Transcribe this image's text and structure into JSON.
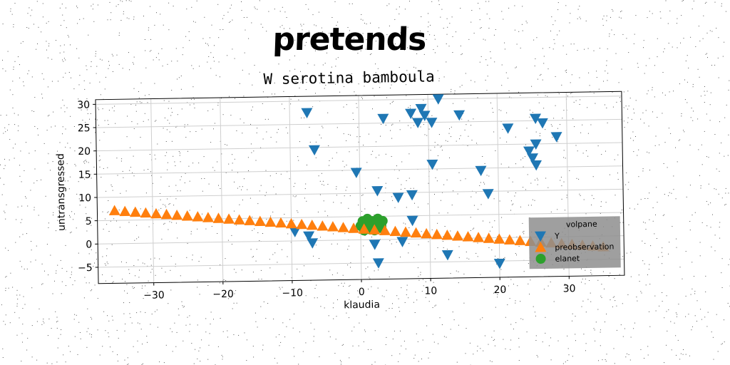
{
  "header": {
    "title": "pretends"
  },
  "chart_data": {
    "type": "scatter",
    "title": "W serotina bamboula",
    "xlabel": "klaudia",
    "ylabel": "untransgressed",
    "xlim": [
      -38,
      38
    ],
    "ylim": [
      -8.5,
      31
    ],
    "xticks": [
      -30,
      -20,
      -10,
      0,
      10,
      20,
      30
    ],
    "yticks": [
      -5,
      0,
      5,
      10,
      15,
      20,
      25,
      30
    ],
    "grid": true,
    "legend": {
      "title": "volpane",
      "placement": "lower-right"
    },
    "series": [
      {
        "name": "Y",
        "marker": "triangle-down",
        "color": "#1f77b4",
        "points": [
          [
            -7.5,
            27.5
          ],
          [
            -6.5,
            19.5
          ],
          [
            -0.5,
            14.5
          ],
          [
            3.5,
            26
          ],
          [
            7.5,
            27
          ],
          [
            8.5,
            25
          ],
          [
            9,
            28
          ],
          [
            9.5,
            26.5
          ],
          [
            10.5,
            25
          ],
          [
            11.5,
            30
          ],
          [
            14.5,
            26.5
          ],
          [
            10.5,
            16
          ],
          [
            2.5,
            10.5
          ],
          [
            5.5,
            9
          ],
          [
            7.5,
            9.5
          ],
          [
            7.5,
            4
          ],
          [
            17.5,
            14.5
          ],
          [
            18.5,
            9.5
          ],
          [
            21.5,
            23.5
          ],
          [
            24.5,
            18.5
          ],
          [
            25.5,
            20
          ],
          [
            25,
            17
          ],
          [
            25.5,
            15.5
          ],
          [
            25.5,
            25.5
          ],
          [
            26.5,
            24.5
          ],
          [
            28.5,
            21.5
          ],
          [
            -9.5,
            2
          ],
          [
            -7.5,
            1
          ],
          [
            -7,
            -0.5
          ],
          [
            2,
            -1
          ],
          [
            6,
            -0.5
          ],
          [
            12.5,
            -3.5
          ],
          [
            2.5,
            -5
          ],
          [
            20,
            -5.5
          ]
        ]
      },
      {
        "name": "preobservation",
        "marker": "triangle-up",
        "color": "#ff7f0e",
        "points": [
          [
            -35.5,
            7.1
          ],
          [
            -34,
            6.9
          ],
          [
            -32.5,
            6.7
          ],
          [
            -31,
            6.5
          ],
          [
            -29.5,
            6.3
          ],
          [
            -28,
            6.1
          ],
          [
            -26.5,
            5.9
          ],
          [
            -25,
            5.7
          ],
          [
            -23.5,
            5.5
          ],
          [
            -22,
            5.3
          ],
          [
            -20.5,
            5.1
          ],
          [
            -19,
            4.9
          ],
          [
            -17.5,
            4.7
          ],
          [
            -16,
            4.5
          ],
          [
            -14.5,
            4.3
          ],
          [
            -13,
            4.1
          ],
          [
            -11.5,
            3.9
          ],
          [
            -10,
            3.7
          ],
          [
            -8.5,
            3.5
          ],
          [
            -7,
            3.3
          ],
          [
            -5.5,
            3.1
          ],
          [
            -4,
            2.9
          ],
          [
            -2.5,
            2.7
          ],
          [
            -1,
            2.5
          ],
          [
            0.5,
            2.3
          ],
          [
            2,
            2.1
          ],
          [
            3.5,
            1.9
          ],
          [
            5,
            1.7
          ],
          [
            6.5,
            1.5
          ],
          [
            8,
            1.3
          ],
          [
            9.5,
            1.1
          ],
          [
            11,
            0.9
          ],
          [
            12.5,
            0.7
          ],
          [
            14,
            0.5
          ],
          [
            15.5,
            0.3
          ],
          [
            17,
            0.1
          ],
          [
            18.5,
            -0.1
          ],
          [
            20,
            -0.3
          ],
          [
            21.5,
            -0.5
          ],
          [
            23,
            -0.7
          ],
          [
            24.5,
            -0.9
          ],
          [
            26,
            -1.1
          ],
          [
            27.5,
            -1.3
          ],
          [
            29,
            -1.5
          ],
          [
            30.5,
            -1.7
          ],
          [
            32,
            -1.9
          ],
          [
            33.5,
            -2.1
          ],
          [
            35,
            -2.3
          ]
        ]
      },
      {
        "name": "elanet",
        "marker": "circle",
        "color": "#2ca02c",
        "points": [
          [
            0,
            3
          ],
          [
            0.3,
            4
          ],
          [
            0.5,
            2
          ],
          [
            0.8,
            3.5
          ],
          [
            1,
            4.5
          ],
          [
            1.2,
            2.5
          ],
          [
            1.5,
            3
          ],
          [
            1.8,
            4
          ],
          [
            2,
            2
          ],
          [
            2.2,
            3.5
          ],
          [
            2.5,
            4.5
          ],
          [
            2.8,
            2.5
          ],
          [
            3,
            3.2
          ],
          [
            3.2,
            4
          ],
          [
            1,
            3
          ],
          [
            2,
            3
          ],
          [
            0.5,
            3.8
          ],
          [
            2.6,
            3.8
          ],
          [
            1.4,
            2.2
          ],
          [
            3,
            2.6
          ]
        ]
      }
    ]
  }
}
